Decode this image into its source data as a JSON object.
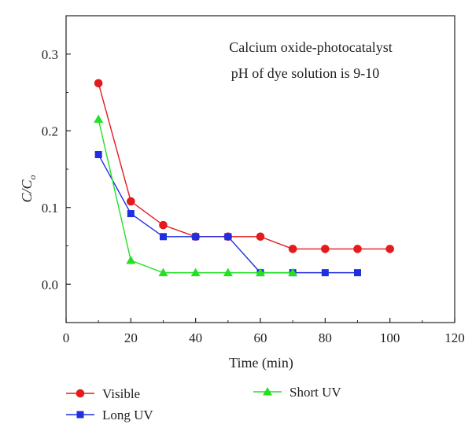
{
  "chart_data": {
    "type": "line",
    "xlabel": "Time (min)",
    "ylabel": "C/C",
    "ylabel_sub": "o",
    "xlim": [
      0,
      120
    ],
    "ylim": [
      -0.05,
      0.35
    ],
    "xticks": [
      0,
      20,
      40,
      60,
      80,
      100,
      120
    ],
    "yticks": [
      0.0,
      0.1,
      0.2,
      0.3
    ],
    "ytick_labels": [
      "0.0",
      "0.1",
      "0.2",
      "0.3"
    ],
    "annotations": [
      "Calcium oxide-photocatalyst",
      "pH of dye solution is 9-10"
    ],
    "grid": false,
    "legend_position": "bottom",
    "series": [
      {
        "name": "Visible",
        "color": "#e41a1c",
        "marker": "circle",
        "x": [
          10,
          20,
          30,
          40,
          50,
          60,
          70,
          80,
          90,
          100
        ],
        "y": [
          0.262,
          0.108,
          0.077,
          0.062,
          0.062,
          0.062,
          0.046,
          0.046,
          0.046,
          0.046
        ]
      },
      {
        "name": "Long UV",
        "color": "#1f2ee0",
        "marker": "square",
        "x": [
          10,
          20,
          30,
          40,
          50,
          60,
          70,
          80,
          90
        ],
        "y": [
          0.169,
          0.092,
          0.062,
          0.062,
          0.062,
          0.015,
          0.015,
          0.015,
          0.015
        ]
      },
      {
        "name": "Short UV",
        "color": "#22e022",
        "marker": "triangle",
        "x": [
          10,
          20,
          30,
          40,
          50,
          60,
          70
        ],
        "y": [
          0.215,
          0.031,
          0.015,
          0.015,
          0.015,
          0.015,
          0.015
        ]
      }
    ]
  }
}
